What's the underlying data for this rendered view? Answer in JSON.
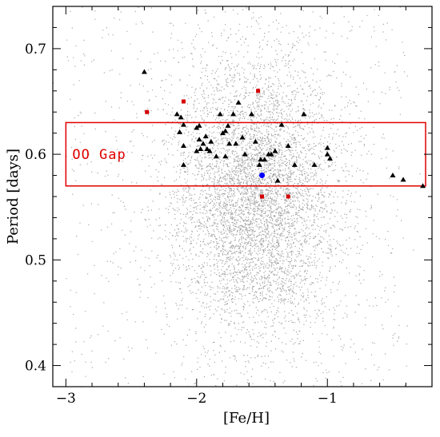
{
  "chart_data": {
    "type": "scatter",
    "title": "",
    "xlabel": "[Fe/H]",
    "ylabel": "Period [days]",
    "xlim": [
      -3.1,
      -0.2
    ],
    "ylim": [
      0.38,
      0.74
    ],
    "x_ticks": [
      -3,
      -2,
      -1
    ],
    "x_tick_labels": [
      "−3",
      "−2",
      "−1"
    ],
    "y_ticks": [
      0.4,
      0.5,
      0.6,
      0.7
    ],
    "y_tick_labels": [
      "0.4",
      "0.5",
      "0.6",
      "0.7"
    ],
    "grid": false,
    "legend": null,
    "colors": {
      "background_points": "#a6a6a6",
      "triangles": "#000000",
      "squares": "#d40000",
      "circle": "#0000ff",
      "gap_box": "#e00000"
    },
    "oo_gap_region": {
      "label": "OO Gap",
      "x_range": [
        -3.0,
        -0.2
      ],
      "y_range": [
        0.57,
        0.63
      ]
    },
    "background_cloud": {
      "description": "dense field of small grey points",
      "n_points": 6500,
      "center_feh": -1.55,
      "sigma_feh": 0.3,
      "center_period": 0.56,
      "sigma_period": 0.065
    },
    "series": [
      {
        "marker": "triangle",
        "color": "#000000",
        "points": [
          [
            -2.4,
            0.678
          ],
          [
            -2.15,
            0.638
          ],
          [
            -2.12,
            0.635
          ],
          [
            -2.1,
            0.628
          ],
          [
            -2.13,
            0.621
          ],
          [
            -2.1,
            0.608
          ],
          [
            -2.1,
            0.59
          ],
          [
            -1.98,
            0.627
          ],
          [
            -2.0,
            0.625
          ],
          [
            -1.93,
            0.617
          ],
          [
            -1.98,
            0.614
          ],
          [
            -1.95,
            0.61
          ],
          [
            -1.92,
            0.605
          ],
          [
            -1.97,
            0.605
          ],
          [
            -2.0,
            0.603
          ],
          [
            -1.9,
            0.603
          ],
          [
            -1.89,
            0.612
          ],
          [
            -1.85,
            0.598
          ],
          [
            -1.78,
            0.598
          ],
          [
            -1.82,
            0.638
          ],
          [
            -1.8,
            0.62
          ],
          [
            -1.78,
            0.622
          ],
          [
            -1.76,
            0.627
          ],
          [
            -1.75,
            0.61
          ],
          [
            -1.68,
            0.649
          ],
          [
            -1.72,
            0.638
          ],
          [
            -1.7,
            0.61
          ],
          [
            -1.65,
            0.616
          ],
          [
            -1.63,
            0.6
          ],
          [
            -1.58,
            0.638
          ],
          [
            -1.55,
            0.612
          ],
          [
            -1.52,
            0.59
          ],
          [
            -1.51,
            0.595
          ],
          [
            -1.48,
            0.595
          ],
          [
            -1.45,
            0.6
          ],
          [
            -1.43,
            0.6
          ],
          [
            -1.4,
            0.603
          ],
          [
            -1.38,
            0.575
          ],
          [
            -1.35,
            0.628
          ],
          [
            -1.3,
            0.608
          ],
          [
            -1.25,
            0.59
          ],
          [
            -1.18,
            0.638
          ],
          [
            -1.1,
            0.59
          ],
          [
            -1.0,
            0.606
          ],
          [
            -1.0,
            0.6
          ],
          [
            -0.98,
            0.596
          ],
          [
            -0.5,
            0.58
          ],
          [
            -0.42,
            0.576
          ],
          [
            -0.27,
            0.57
          ]
        ]
      },
      {
        "marker": "square",
        "color": "#d40000",
        "points": [
          [
            -2.38,
            0.64
          ],
          [
            -2.1,
            0.65
          ],
          [
            -1.53,
            0.66
          ],
          [
            -1.5,
            0.56
          ],
          [
            -1.3,
            0.56
          ]
        ]
      },
      {
        "marker": "circle",
        "color": "#0000ff",
        "points": [
          [
            -1.5,
            0.58
          ]
        ]
      }
    ]
  }
}
